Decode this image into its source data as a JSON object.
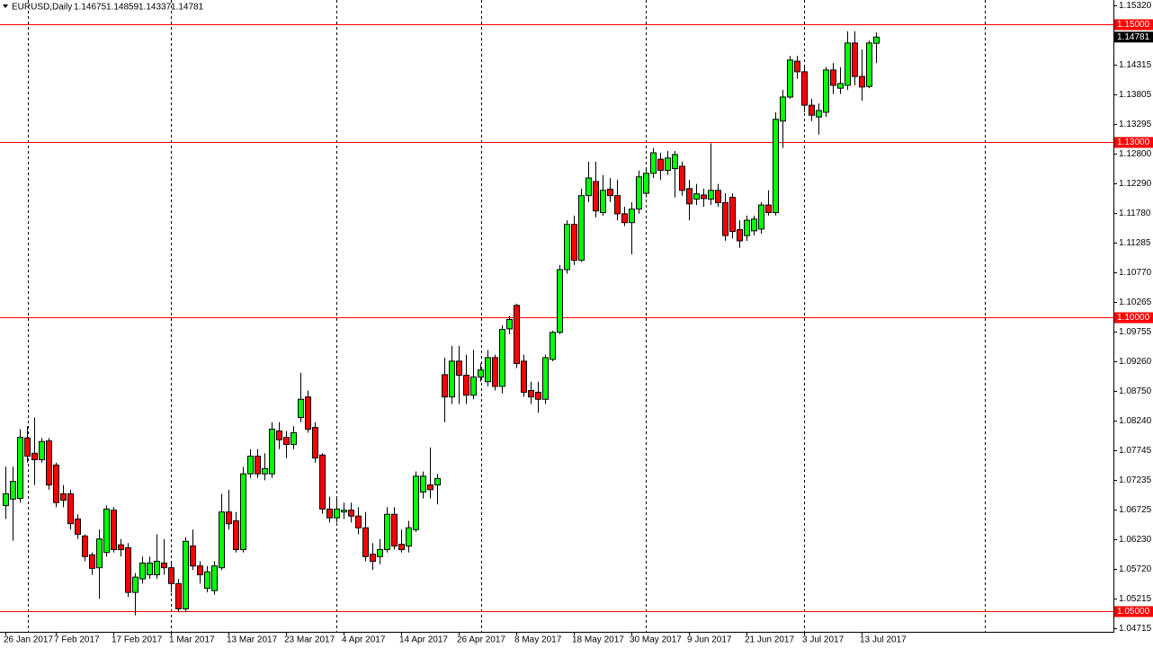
{
  "chart_data": {
    "type": "candlestick",
    "title": "EURUSD,Daily",
    "header_values": [
      "1.14675",
      "1.14859",
      "1.14337",
      "1.14781"
    ],
    "categories": [
      "26 Jan 2017",
      null,
      null,
      null,
      null,
      null,
      null,
      "7 Feb 2017",
      null,
      null,
      null,
      null,
      null,
      null,
      null,
      "17 Feb 2017",
      null,
      null,
      null,
      null,
      null,
      null,
      null,
      "1 Mar 2017",
      null,
      null,
      null,
      null,
      null,
      null,
      null,
      "13 Mar 2017",
      null,
      null,
      null,
      null,
      null,
      null,
      null,
      "23 Mar 2017",
      null,
      null,
      null,
      null,
      null,
      null,
      null,
      "4 Apr 2017",
      null,
      null,
      null,
      null,
      null,
      null,
      null,
      "14 Apr 2017",
      null,
      null,
      null,
      null,
      null,
      null,
      null,
      "26 Apr 2017",
      null,
      null,
      null,
      null,
      null,
      null,
      null,
      "8 May 2017",
      null,
      null,
      null,
      null,
      null,
      null,
      null,
      "18 May 2017",
      null,
      null,
      null,
      null,
      null,
      null,
      null,
      "30 May 2017",
      null,
      null,
      null,
      null,
      null,
      null,
      null,
      "9 Jun 2017",
      null,
      null,
      null,
      null,
      null,
      null,
      null,
      "21 Jun 2017",
      null,
      null,
      null,
      null,
      null,
      null,
      null,
      "3 Jul 2017",
      null,
      null,
      null,
      null,
      null,
      null,
      null,
      "13 Jul 2017",
      null,
      null
    ],
    "open": [
      1.068,
      1.0691,
      1.0692,
      1.0795,
      1.0769,
      1.0758,
      1.079,
      1.0749,
      1.07,
      1.07,
      1.0657,
      1.0628,
      1.0596,
      1.0574,
      1.06,
      1.0672,
      1.0613,
      1.0608,
      1.0532,
      1.0555,
      1.0562,
      1.0562,
      1.0582,
      1.0574,
      1.0547,
      1.0504,
      1.0611,
      1.0577,
      1.0539,
      1.0535,
      1.0574,
      1.0669,
      1.0654,
      1.0605,
      1.0734,
      1.0764,
      1.0734,
      1.0734,
      1.0807,
      1.0796,
      1.0784,
      1.083,
      1.0865,
      1.0813,
      1.0766,
      1.0674,
      1.0659,
      1.0669,
      1.0672,
      1.0662,
      1.0642,
      1.0597,
      1.0593,
      1.0605,
      1.0665,
      1.0614,
      1.0611,
      1.0639,
      1.0703,
      1.0715,
      1.0715,
      1.0903,
      1.0865,
      1.0926,
      1.0902,
      1.0868,
      1.0899,
      1.0891,
      1.0932,
      1.0883,
      1.0981,
      1.1021,
      1.0926,
      1.0876,
      1.0873,
      1.0861,
      1.0929,
      1.0975,
      1.1082,
      1.1159,
      1.1098,
      1.1208,
      1.1232,
      1.1179,
      1.1219,
      1.1208,
      1.1177,
      1.1162,
      1.1185,
      1.1212,
      1.1246,
      1.127,
      1.1251,
      1.1254,
      1.1258,
      1.122,
      1.1202,
      1.1209,
      1.1202,
      1.1217,
      1.1196,
      1.1205,
      1.115,
      1.114,
      1.1148,
      1.1151,
      1.1192,
      1.1179,
      1.1335,
      1.1376,
      1.1437,
      1.1419,
      1.1362,
      1.1342,
      1.135,
      1.1422,
      1.1391,
      1.1396,
      1.1468,
      1.1411,
      1.1394,
      1.14675
    ],
    "high": [
      1.0746,
      1.0746,
      1.081,
      1.0815,
      1.083,
      1.0795,
      1.0795,
      1.0753,
      1.0715,
      1.0707,
      1.0665,
      1.0631,
      1.06,
      1.0639,
      1.068,
      1.0677,
      1.0623,
      1.0616,
      1.0565,
      1.0593,
      1.0593,
      1.0631,
      1.0623,
      1.0582,
      1.0555,
      1.0626,
      1.0639,
      1.0585,
      1.0577,
      1.0585,
      1.07,
      1.0707,
      1.0669,
      1.0746,
      1.0776,
      1.0776,
      1.0769,
      1.0822,
      1.0822,
      1.0807,
      1.0815,
      1.0906,
      1.0876,
      1.0822,
      1.0769,
      1.0695,
      1.0692,
      1.0685,
      1.0685,
      1.0677,
      1.0669,
      1.0616,
      1.0623,
      1.0677,
      1.0677,
      1.0639,
      1.0654,
      1.0738,
      1.0738,
      1.0779,
      1.0734,
      1.0932,
      1.0952,
      1.0952,
      1.0937,
      1.0945,
      1.0922,
      1.0945,
      1.0937,
      1.0987,
      1.1003,
      1.1024,
      1.0937,
      1.0891,
      1.0891,
      1.0937,
      1.0978,
      1.109,
      1.1166,
      1.1174,
      1.122,
      1.1266,
      1.1266,
      1.1243,
      1.1238,
      1.1235,
      1.1189,
      1.1197,
      1.1251,
      1.1254,
      1.1289,
      1.1281,
      1.1284,
      1.1284,
      1.1266,
      1.1235,
      1.1228,
      1.122,
      1.1297,
      1.1228,
      1.1212,
      1.1212,
      1.1166,
      1.1174,
      1.1174,
      1.1197,
      1.1217,
      1.135,
      1.1388,
      1.1446,
      1.1446,
      1.1427,
      1.1373,
      1.1365,
      1.1427,
      1.1434,
      1.1427,
      1.1488,
      1.1488,
      1.1457,
      1.1472,
      1.14859
    ],
    "low": [
      1.0657,
      1.062,
      1.0685,
      1.0753,
      1.0715,
      1.0753,
      1.0707,
      1.0677,
      1.0677,
      1.0639,
      1.0623,
      1.0585,
      1.0562,
      1.0521,
      1.0593,
      1.06,
      1.0593,
      1.0524,
      1.0493,
      1.0547,
      1.0555,
      1.0555,
      1.0562,
      1.0532,
      1.0498,
      1.0498,
      1.057,
      1.0547,
      1.0532,
      1.0528,
      1.057,
      1.0639,
      1.06,
      1.06,
      1.0727,
      1.0727,
      1.0723,
      1.0727,
      1.0776,
      1.0761,
      1.0776,
      1.0822,
      1.0804,
      1.0753,
      1.0666,
      1.0651,
      1.0651,
      1.0657,
      1.0651,
      1.0631,
      1.0585,
      1.057,
      1.058,
      1.06,
      1.0605,
      1.06,
      1.06,
      1.0635,
      1.0692,
      1.0692,
      1.0682,
      1.0822,
      1.0853,
      1.0853,
      1.0853,
      1.0861,
      1.0891,
      1.0883,
      1.0876,
      1.0871,
      1.0972,
      1.0914,
      1.0865,
      1.0853,
      1.0838,
      1.0853,
      1.0926,
      1.0972,
      1.1075,
      1.109,
      1.1095,
      1.1197,
      1.1171,
      1.1174,
      1.1197,
      1.1166,
      1.1156,
      1.1108,
      1.1177,
      1.1205,
      1.1238,
      1.1235,
      1.1243,
      1.1205,
      1.1208,
      1.1166,
      1.1192,
      1.1189,
      1.1192,
      1.1189,
      1.1131,
      1.1135,
      1.1119,
      1.1131,
      1.114,
      1.1143,
      1.1174,
      1.1174,
      1.1289,
      1.1373,
      1.1407,
      1.135,
      1.1335,
      1.1312,
      1.1342,
      1.1381,
      1.1381,
      1.1388,
      1.1396,
      1.137,
      1.1391,
      1.14337
    ],
    "close": [
      1.07,
      1.0721,
      1.0796,
      1.0764,
      1.0758,
      1.0789,
      1.0715,
      1.0685,
      1.0689,
      1.0649,
      1.0631,
      1.0593,
      1.0573,
      1.0623,
      1.0674,
      1.0605,
      1.0605,
      1.0532,
      1.0558,
      1.0582,
      1.0582,
      1.0585,
      1.0574,
      1.0547,
      1.0504,
      1.0619,
      1.0577,
      1.0562,
      1.0567,
      1.0577,
      1.0669,
      1.0649,
      1.0605,
      1.0734,
      1.0764,
      1.0734,
      1.0743,
      1.081,
      1.0792,
      1.0784,
      1.0804,
      1.0861,
      1.081,
      1.0761,
      1.0674,
      1.0659,
      1.0674,
      1.0672,
      1.0662,
      1.0642,
      1.0593,
      1.0585,
      1.0605,
      1.0665,
      1.0611,
      1.0605,
      1.0642,
      1.073,
      1.073,
      1.0707,
      1.0726,
      1.0865,
      1.0926,
      1.0902,
      1.0868,
      1.0899,
      1.0911,
      1.0932,
      1.0883,
      1.098,
      1.0997,
      1.0922,
      1.0873,
      1.0865,
      1.0861,
      1.0932,
      1.0975,
      1.1082,
      1.1159,
      1.1098,
      1.1208,
      1.1238,
      1.1182,
      1.1217,
      1.1208,
      1.1177,
      1.1162,
      1.1185,
      1.124,
      1.1246,
      1.1281,
      1.1251,
      1.1272,
      1.1278,
      1.1217,
      1.1194,
      1.1211,
      1.1203,
      1.1217,
      1.1196,
      1.114,
      1.1147,
      1.1131,
      1.1166,
      1.1168,
      1.1192,
      1.1179,
      1.1338,
      1.1376,
      1.1439,
      1.1419,
      1.1362,
      1.1345,
      1.1353,
      1.1422,
      1.1396,
      1.1399,
      1.1468,
      1.1411,
      1.1393,
      1.1468,
      1.14781
    ],
    "up_color": "#00ff00",
    "down_color": "#ff0000",
    "ylim": [
      1.04648,
      1.15413
    ],
    "yticks": [
      {
        "value": 1.1532,
        "label": "1.15320"
      },
      {
        "value": 1.14315,
        "label": "1.14315"
      },
      {
        "value": 1.13805,
        "label": "1.13805"
      },
      {
        "value": 1.13295,
        "label": "1.13295"
      },
      {
        "value": 1.128,
        "label": "1.12800"
      },
      {
        "value": 1.1229,
        "label": "1.12290"
      },
      {
        "value": 1.1178,
        "label": "1.11780"
      },
      {
        "value": 1.11285,
        "label": "1.11285"
      },
      {
        "value": 1.1077,
        "label": "1.10770"
      },
      {
        "value": 1.10265,
        "label": "1.10265"
      },
      {
        "value": 1.09755,
        "label": "1.09755"
      },
      {
        "value": 1.0926,
        "label": "1.09260"
      },
      {
        "value": 1.0875,
        "label": "1.08750"
      },
      {
        "value": 1.0824,
        "label": "1.08240"
      },
      {
        "value": 1.07745,
        "label": "1.07745"
      },
      {
        "value": 1.07235,
        "label": "1.07235"
      },
      {
        "value": 1.06725,
        "label": "1.06725"
      },
      {
        "value": 1.0623,
        "label": "1.06230"
      },
      {
        "value": 1.0572,
        "label": "1.05720"
      },
      {
        "value": 1.05215,
        "label": "1.05215"
      },
      {
        "value": 1.04715,
        "label": "1.04715"
      }
    ],
    "levels": [
      {
        "value": 1.15,
        "label": "1.15000"
      },
      {
        "value": 1.13,
        "label": "1.13000"
      },
      {
        "value": 1.1,
        "label": "1.10000"
      },
      {
        "value": 1.05,
        "label": "1.05000"
      }
    ],
    "level_color": "#ff0000",
    "last_price": {
      "value": 1.14781,
      "label": "1.14781"
    }
  }
}
